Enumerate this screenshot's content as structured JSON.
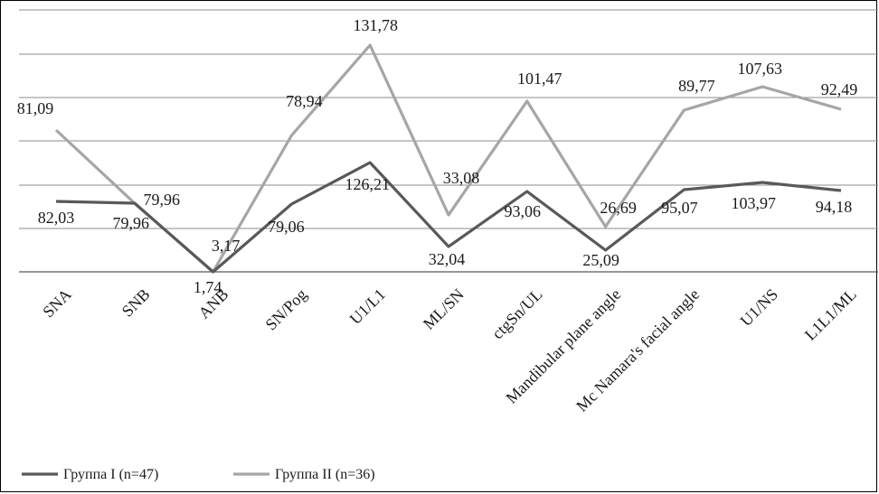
{
  "colors": {
    "series_1": "#595959",
    "series_2": "#a6a6a6",
    "grid": "#8c8c8c"
  },
  "chart_data": {
    "type": "line",
    "title": "",
    "xlabel": "",
    "ylabel": "",
    "categories": [
      "SNA",
      "SNB",
      "ANB",
      "SN/Pog",
      "U1/L1",
      "ML/SN",
      "ctgSn/UL",
      "Mandibular plane angle",
      "Mc Namara's facial angle",
      "U1/NS",
      "L1L1/ML"
    ],
    "series": [
      {
        "name": "Группа I (n=47)",
        "values": [
          82.03,
          79.96,
          1.74,
          79.06,
          126.21,
          32.04,
          93.06,
          25.09,
          95.07,
          103.97,
          94.18
        ],
        "labels": [
          "82,03",
          "79,96",
          "1,74",
          "79,06",
          "126,21",
          "32,04",
          "93,06",
          "25,09",
          "95,07",
          "103,97",
          "94,18"
        ]
      },
      {
        "name": "Группа II (n=36)",
        "values": [
          81.09,
          79.96,
          3.17,
          78.94,
          131.78,
          33.08,
          101.47,
          26.69,
          89.77,
          107.63,
          92.49
        ],
        "labels": [
          "81,09",
          "79,96",
          "3,17",
          "78,94",
          "131,78",
          "33,08",
          "101,47",
          "26,69",
          "89,77",
          "107,63",
          "92,49"
        ]
      }
    ],
    "grid": true,
    "legend_position": "bottom-left"
  }
}
